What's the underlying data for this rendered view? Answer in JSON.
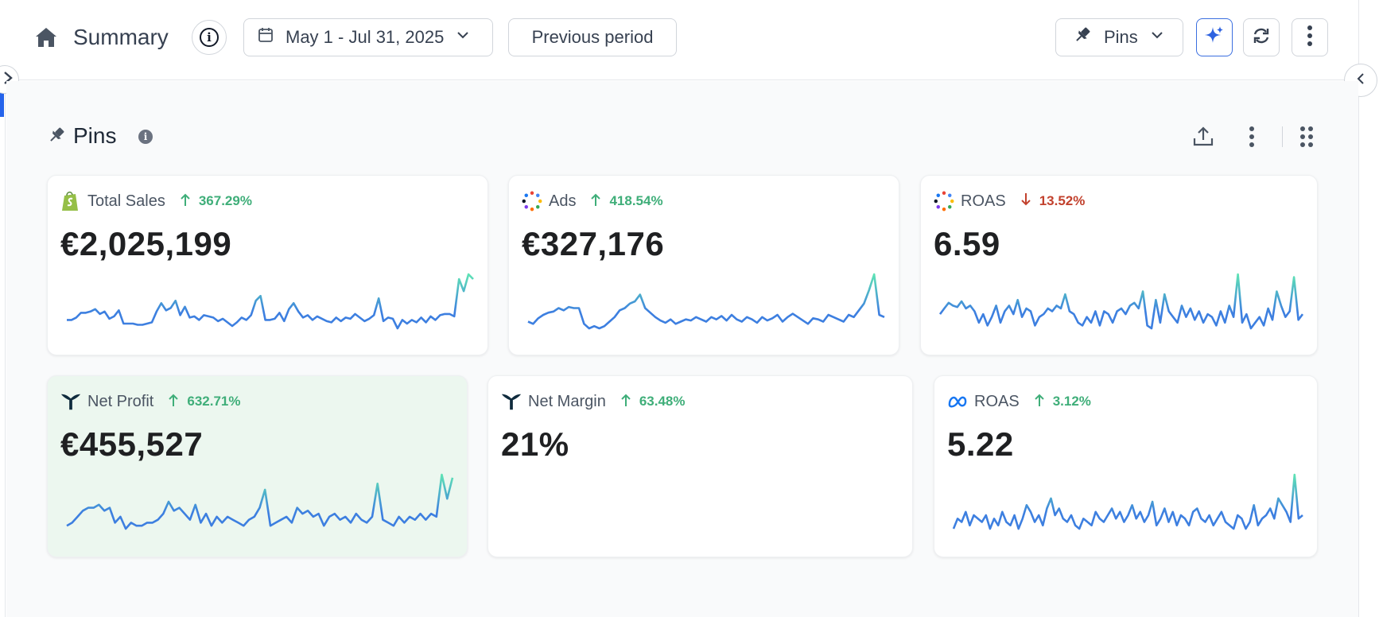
{
  "header": {
    "title": "Summary",
    "date_range": "May 1 - Jul 31, 2025",
    "compare_label": "Previous period",
    "pins_label": "Pins",
    "icons": [
      "home-icon",
      "info-icon",
      "calendar-icon",
      "chevron-down-icon",
      "pin-icon",
      "sparkle-icon",
      "refresh-icon",
      "more-vertical-icon"
    ]
  },
  "section": {
    "title": "Pins",
    "icons": [
      "pin-icon",
      "info-icon",
      "upload-icon",
      "more-vertical-icon",
      "grip-icon"
    ]
  },
  "colors": {
    "trend_up": "#3fae79",
    "trend_down": "#c2412d",
    "spark_start": "#3d7fe0",
    "spark_end": "#5fe3b5",
    "accent": "#2563eb"
  },
  "cards": [
    {
      "name": "Total Sales",
      "source_icon": "shopify-icon",
      "change": "367.29%",
      "direction": "up",
      "value": "€2,025,199",
      "spark": [
        12,
        12,
        14,
        18,
        18,
        19,
        21,
        17,
        19,
        13,
        15,
        20,
        9,
        9,
        9,
        8,
        8,
        9,
        10,
        19,
        26,
        20,
        22,
        28,
        16,
        23,
        14,
        15,
        12,
        16,
        15,
        14,
        11,
        13,
        10,
        7,
        10,
        14,
        12,
        16,
        28,
        32,
        12,
        12,
        13,
        18,
        11,
        21,
        26,
        19,
        14,
        16,
        12,
        15,
        13,
        11,
        10,
        14,
        11,
        14,
        13,
        17,
        14,
        11,
        13,
        16,
        30,
        11,
        14,
        13,
        5,
        12,
        9,
        12,
        10,
        14,
        10,
        15,
        12,
        16,
        17,
        17,
        15,
        46,
        36,
        50,
        46
      ]
    },
    {
      "name": "Ads",
      "source_icon": "multi-channel-icon",
      "change": "418.54%",
      "direction": "up",
      "value": "€327,176",
      "spark": [
        18,
        16,
        21,
        24,
        26,
        27,
        30,
        28,
        31,
        30,
        30,
        16,
        12,
        14,
        12,
        14,
        18,
        22,
        28,
        30,
        34,
        36,
        42,
        30,
        26,
        22,
        19,
        17,
        20,
        16,
        18,
        20,
        19,
        22,
        20,
        18,
        22,
        20,
        23,
        19,
        24,
        20,
        18,
        22,
        20,
        17,
        22,
        19,
        21,
        24,
        18,
        22,
        25,
        22,
        19,
        16,
        21,
        20,
        18,
        24,
        22,
        20,
        18,
        24,
        22,
        28,
        34,
        46,
        60,
        24,
        22
      ]
    },
    {
      "name": "ROAS",
      "source_icon": "multi-channel-icon",
      "change": "13.52%",
      "direction": "down",
      "value": "6.59",
      "spark": [
        20,
        24,
        28,
        26,
        25,
        29,
        24,
        26,
        22,
        14,
        20,
        12,
        18,
        26,
        14,
        22,
        26,
        20,
        30,
        18,
        24,
        22,
        12,
        18,
        20,
        24,
        22,
        26,
        24,
        34,
        22,
        20,
        14,
        12,
        18,
        14,
        22,
        12,
        22,
        20,
        14,
        22,
        24,
        20,
        26,
        28,
        24,
        36,
        12,
        10,
        30,
        14,
        34,
        22,
        18,
        14,
        26,
        18,
        24,
        16,
        22,
        14,
        20,
        18,
        12,
        22,
        14,
        26,
        18,
        48,
        14,
        20,
        10,
        14,
        18,
        12,
        24,
        16,
        36,
        26,
        18,
        22,
        46,
        16,
        20
      ]
    },
    {
      "name": "Net Profit",
      "source_icon": "triple-whale-icon",
      "change": "632.71%",
      "direction": "up",
      "value": "€455,527",
      "spark": [
        12,
        14,
        18,
        22,
        24,
        24,
        26,
        22,
        24,
        14,
        18,
        10,
        14,
        12,
        12,
        14,
        14,
        16,
        20,
        28,
        22,
        24,
        20,
        16,
        26,
        14,
        20,
        12,
        18,
        14,
        18,
        16,
        14,
        12,
        16,
        18,
        24,
        36,
        12,
        14,
        16,
        18,
        14,
        24,
        20,
        22,
        18,
        20,
        12,
        18,
        20,
        16,
        18,
        14,
        20,
        16,
        14,
        18,
        40,
        16,
        14,
        12,
        18,
        14,
        18,
        16,
        20,
        16,
        20,
        18,
        46,
        30,
        44
      ]
    },
    {
      "name": "Net Margin",
      "source_icon": "triple-whale-icon",
      "change": "63.48%",
      "direction": "up",
      "value": "21%",
      "spark": []
    },
    {
      "name": "ROAS",
      "source_icon": "meta-icon",
      "change": "3.12%",
      "direction": "up",
      "value": "5.22",
      "spark": [
        12,
        18,
        16,
        22,
        14,
        20,
        18,
        16,
        20,
        12,
        18,
        14,
        22,
        16,
        14,
        20,
        12,
        18,
        26,
        22,
        16,
        20,
        14,
        24,
        30,
        20,
        24,
        18,
        16,
        20,
        14,
        12,
        18,
        16,
        14,
        22,
        18,
        16,
        20,
        24,
        18,
        22,
        16,
        20,
        26,
        18,
        22,
        16,
        20,
        28,
        14,
        18,
        24,
        16,
        22,
        14,
        20,
        18,
        14,
        22,
        24,
        18,
        16,
        20,
        14,
        18,
        22,
        16,
        14,
        12,
        20,
        18,
        12,
        16,
        26,
        14,
        18,
        20,
        24,
        18,
        30,
        26,
        22,
        16,
        44,
        18,
        20
      ]
    }
  ]
}
